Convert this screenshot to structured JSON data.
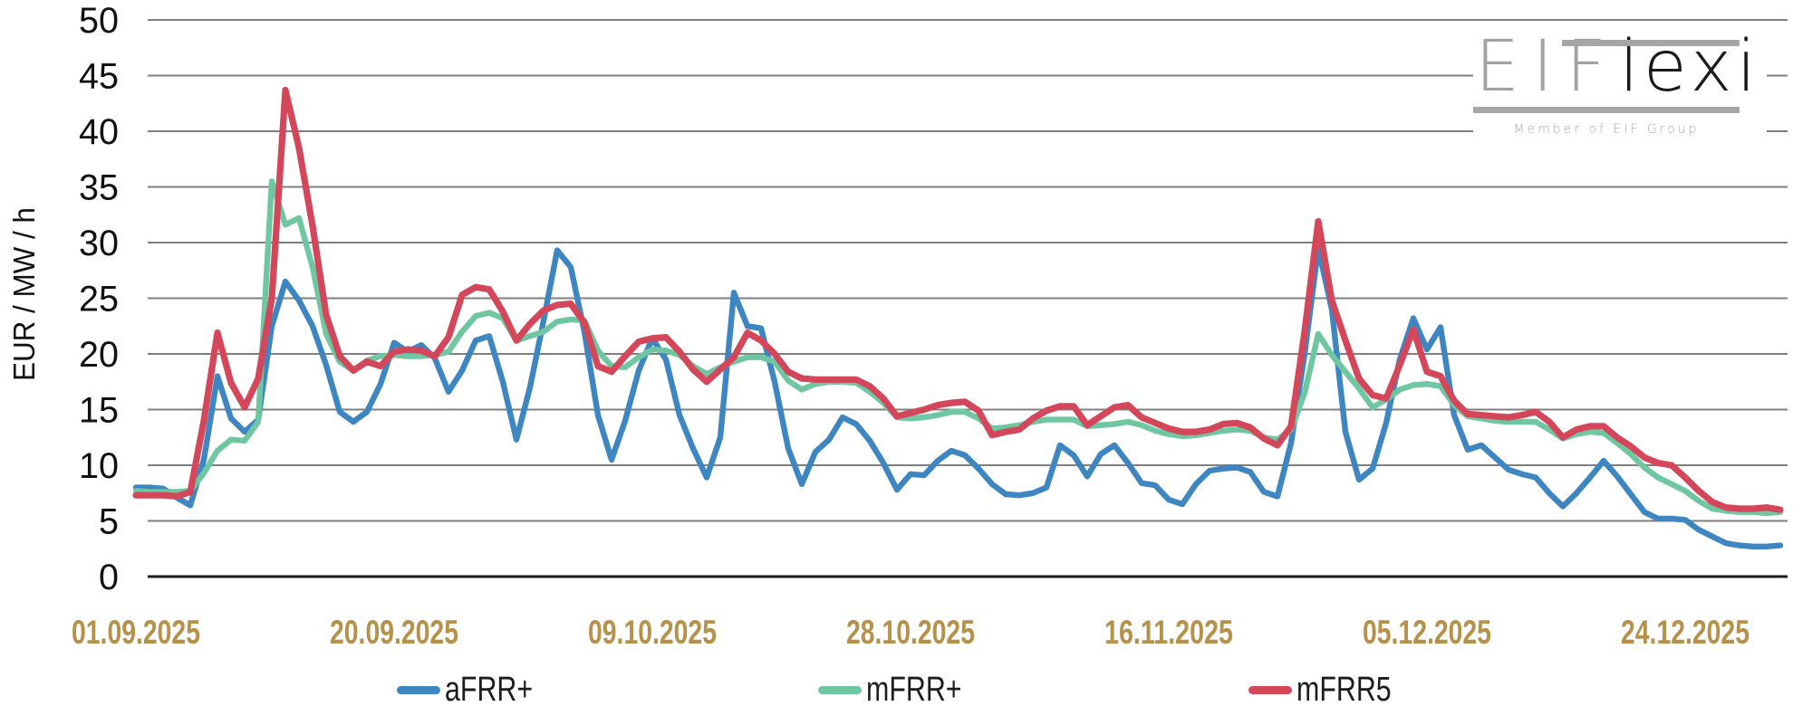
{
  "logo": {
    "brand_gray": "EIF",
    "brand_black": "lexi",
    "tagline": "Member of EIF Group"
  },
  "styles": {
    "grid_color": "#7f7f7f",
    "axis_line_color": "#1a1a1a",
    "x_tick_color": "#b5914a",
    "y_tick_color": "#111111",
    "background": "#ffffff"
  },
  "chart_data": {
    "type": "line",
    "title": "",
    "xlabel": "",
    "ylabel": "EUR / MW / h",
    "ylim": [
      0,
      50
    ],
    "ytick_step": 5,
    "grid": true,
    "legend_position": "bottom",
    "y_tick_labels": [
      "0",
      "5",
      "10",
      "15",
      "20",
      "25",
      "30",
      "35",
      "40",
      "45",
      "50"
    ],
    "x_tick_labels": [
      "01.09.2025",
      "20.09.2025",
      "09.10.2025",
      "28.10.2025",
      "16.11.2025",
      "05.12.2025",
      "24.12.2025"
    ],
    "x_tick_day_index": [
      0,
      19,
      38,
      57,
      76,
      95,
      114
    ],
    "n_points": 122,
    "series": [
      {
        "name": "aFRR+",
        "color": "#3d86c1",
        "values": [
          8.0,
          8.0,
          7.9,
          7.1,
          6.4,
          10.5,
          18.0,
          14.2,
          13.0,
          14.1,
          22.5,
          26.5,
          24.8,
          22.5,
          19.0,
          14.8,
          13.9,
          14.8,
          17.3,
          21.0,
          20.2,
          20.8,
          19.6,
          16.6,
          18.5,
          21.2,
          21.6,
          17.5,
          12.3,
          17.0,
          23.0,
          29.3,
          27.8,
          22.0,
          14.5,
          10.5,
          14.0,
          18.5,
          21.4,
          19.5,
          14.5,
          11.5,
          8.9,
          12.5,
          25.5,
          22.5,
          22.3,
          17.5,
          11.5,
          8.3,
          11.2,
          12.3,
          14.3,
          13.7,
          12.2,
          10.2,
          7.8,
          9.2,
          9.1,
          10.4,
          11.3,
          10.9,
          9.7,
          8.3,
          7.4,
          7.3,
          7.5,
          8.0,
          11.8,
          10.9,
          9.0,
          11.0,
          11.8,
          10.2,
          8.4,
          8.2,
          6.9,
          6.5,
          8.3,
          9.5,
          9.7,
          9.8,
          9.4,
          7.6,
          7.2,
          12.0,
          20.0,
          29.5,
          24.0,
          13.0,
          8.7,
          9.7,
          13.8,
          19.5,
          23.2,
          20.4,
          22.4,
          14.5,
          11.4,
          11.8,
          10.7,
          9.6,
          9.2,
          8.9,
          7.5,
          6.3,
          7.5,
          8.9,
          10.4,
          9.0,
          7.4,
          5.8,
          5.2,
          5.2,
          5.1,
          4.2,
          3.6,
          3.0,
          2.8,
          2.7,
          2.7,
          2.8
        ]
      },
      {
        "name": "mFRR+",
        "color": "#6fc7a2",
        "values": [
          7.7,
          7.6,
          7.6,
          7.6,
          7.7,
          9.3,
          11.3,
          12.3,
          12.2,
          13.9,
          35.5,
          31.6,
          32.2,
          27.8,
          21.8,
          19.3,
          18.5,
          19.4,
          19.8,
          19.9,
          19.8,
          19.8,
          19.9,
          20.2,
          22.0,
          23.4,
          23.7,
          23.2,
          21.2,
          21.6,
          22.0,
          22.9,
          23.1,
          23.0,
          20.3,
          18.9,
          18.8,
          19.7,
          20.4,
          20.3,
          19.9,
          18.9,
          18.2,
          18.8,
          19.3,
          19.7,
          19.7,
          19.3,
          17.6,
          16.8,
          17.3,
          17.5,
          17.5,
          17.4,
          16.6,
          15.6,
          14.3,
          14.2,
          14.3,
          14.5,
          14.8,
          14.8,
          14.2,
          13.3,
          13.4,
          13.6,
          13.9,
          14.1,
          14.1,
          14.1,
          13.5,
          13.6,
          13.7,
          13.9,
          13.6,
          13.1,
          12.8,
          12.6,
          12.7,
          12.9,
          13.1,
          13.2,
          13.1,
          12.5,
          12.3,
          13.2,
          16.5,
          21.8,
          19.9,
          18.4,
          16.9,
          15.2,
          15.9,
          16.8,
          17.2,
          17.3,
          17.1,
          15.4,
          14.4,
          14.2,
          14.0,
          13.9,
          13.9,
          13.9,
          13.2,
          12.4,
          12.8,
          13.0,
          12.9,
          12.0,
          11.0,
          9.8,
          8.9,
          8.3,
          7.7,
          6.8,
          6.1,
          5.9,
          5.8,
          5.8,
          5.7,
          5.8
        ]
      },
      {
        "name": "mFRR5",
        "color": "#d4465a",
        "values": [
          7.3,
          7.3,
          7.3,
          7.2,
          7.6,
          14.0,
          21.9,
          17.4,
          15.2,
          17.8,
          25.0,
          43.7,
          38.5,
          31.5,
          23.5,
          19.8,
          18.5,
          19.3,
          18.9,
          20.2,
          20.4,
          20.3,
          19.8,
          21.5,
          25.3,
          26.0,
          25.8,
          23.8,
          21.2,
          22.7,
          23.9,
          24.4,
          24.5,
          22.8,
          18.9,
          18.4,
          19.8,
          21.1,
          21.4,
          21.5,
          20.2,
          18.6,
          17.5,
          18.6,
          19.7,
          21.9,
          21.2,
          20.0,
          18.4,
          17.8,
          17.7,
          17.7,
          17.7,
          17.7,
          17.1,
          16.0,
          14.4,
          14.7,
          15.0,
          15.4,
          15.6,
          15.7,
          14.9,
          12.7,
          13.0,
          13.2,
          14.2,
          14.9,
          15.3,
          15.3,
          13.6,
          14.4,
          15.2,
          15.4,
          14.3,
          13.8,
          13.3,
          13.0,
          13.0,
          13.2,
          13.7,
          13.8,
          13.4,
          12.4,
          11.8,
          13.5,
          22.0,
          31.9,
          24.8,
          21.2,
          17.8,
          16.3,
          16.0,
          19.0,
          22.2,
          18.4,
          18.0,
          15.8,
          14.6,
          14.5,
          14.4,
          14.3,
          14.5,
          14.8,
          13.9,
          12.5,
          13.2,
          13.5,
          13.5,
          12.5,
          11.7,
          10.7,
          10.2,
          10.0,
          8.9,
          7.7,
          6.7,
          6.2,
          6.1,
          6.1,
          6.2,
          6.0
        ]
      }
    ]
  }
}
